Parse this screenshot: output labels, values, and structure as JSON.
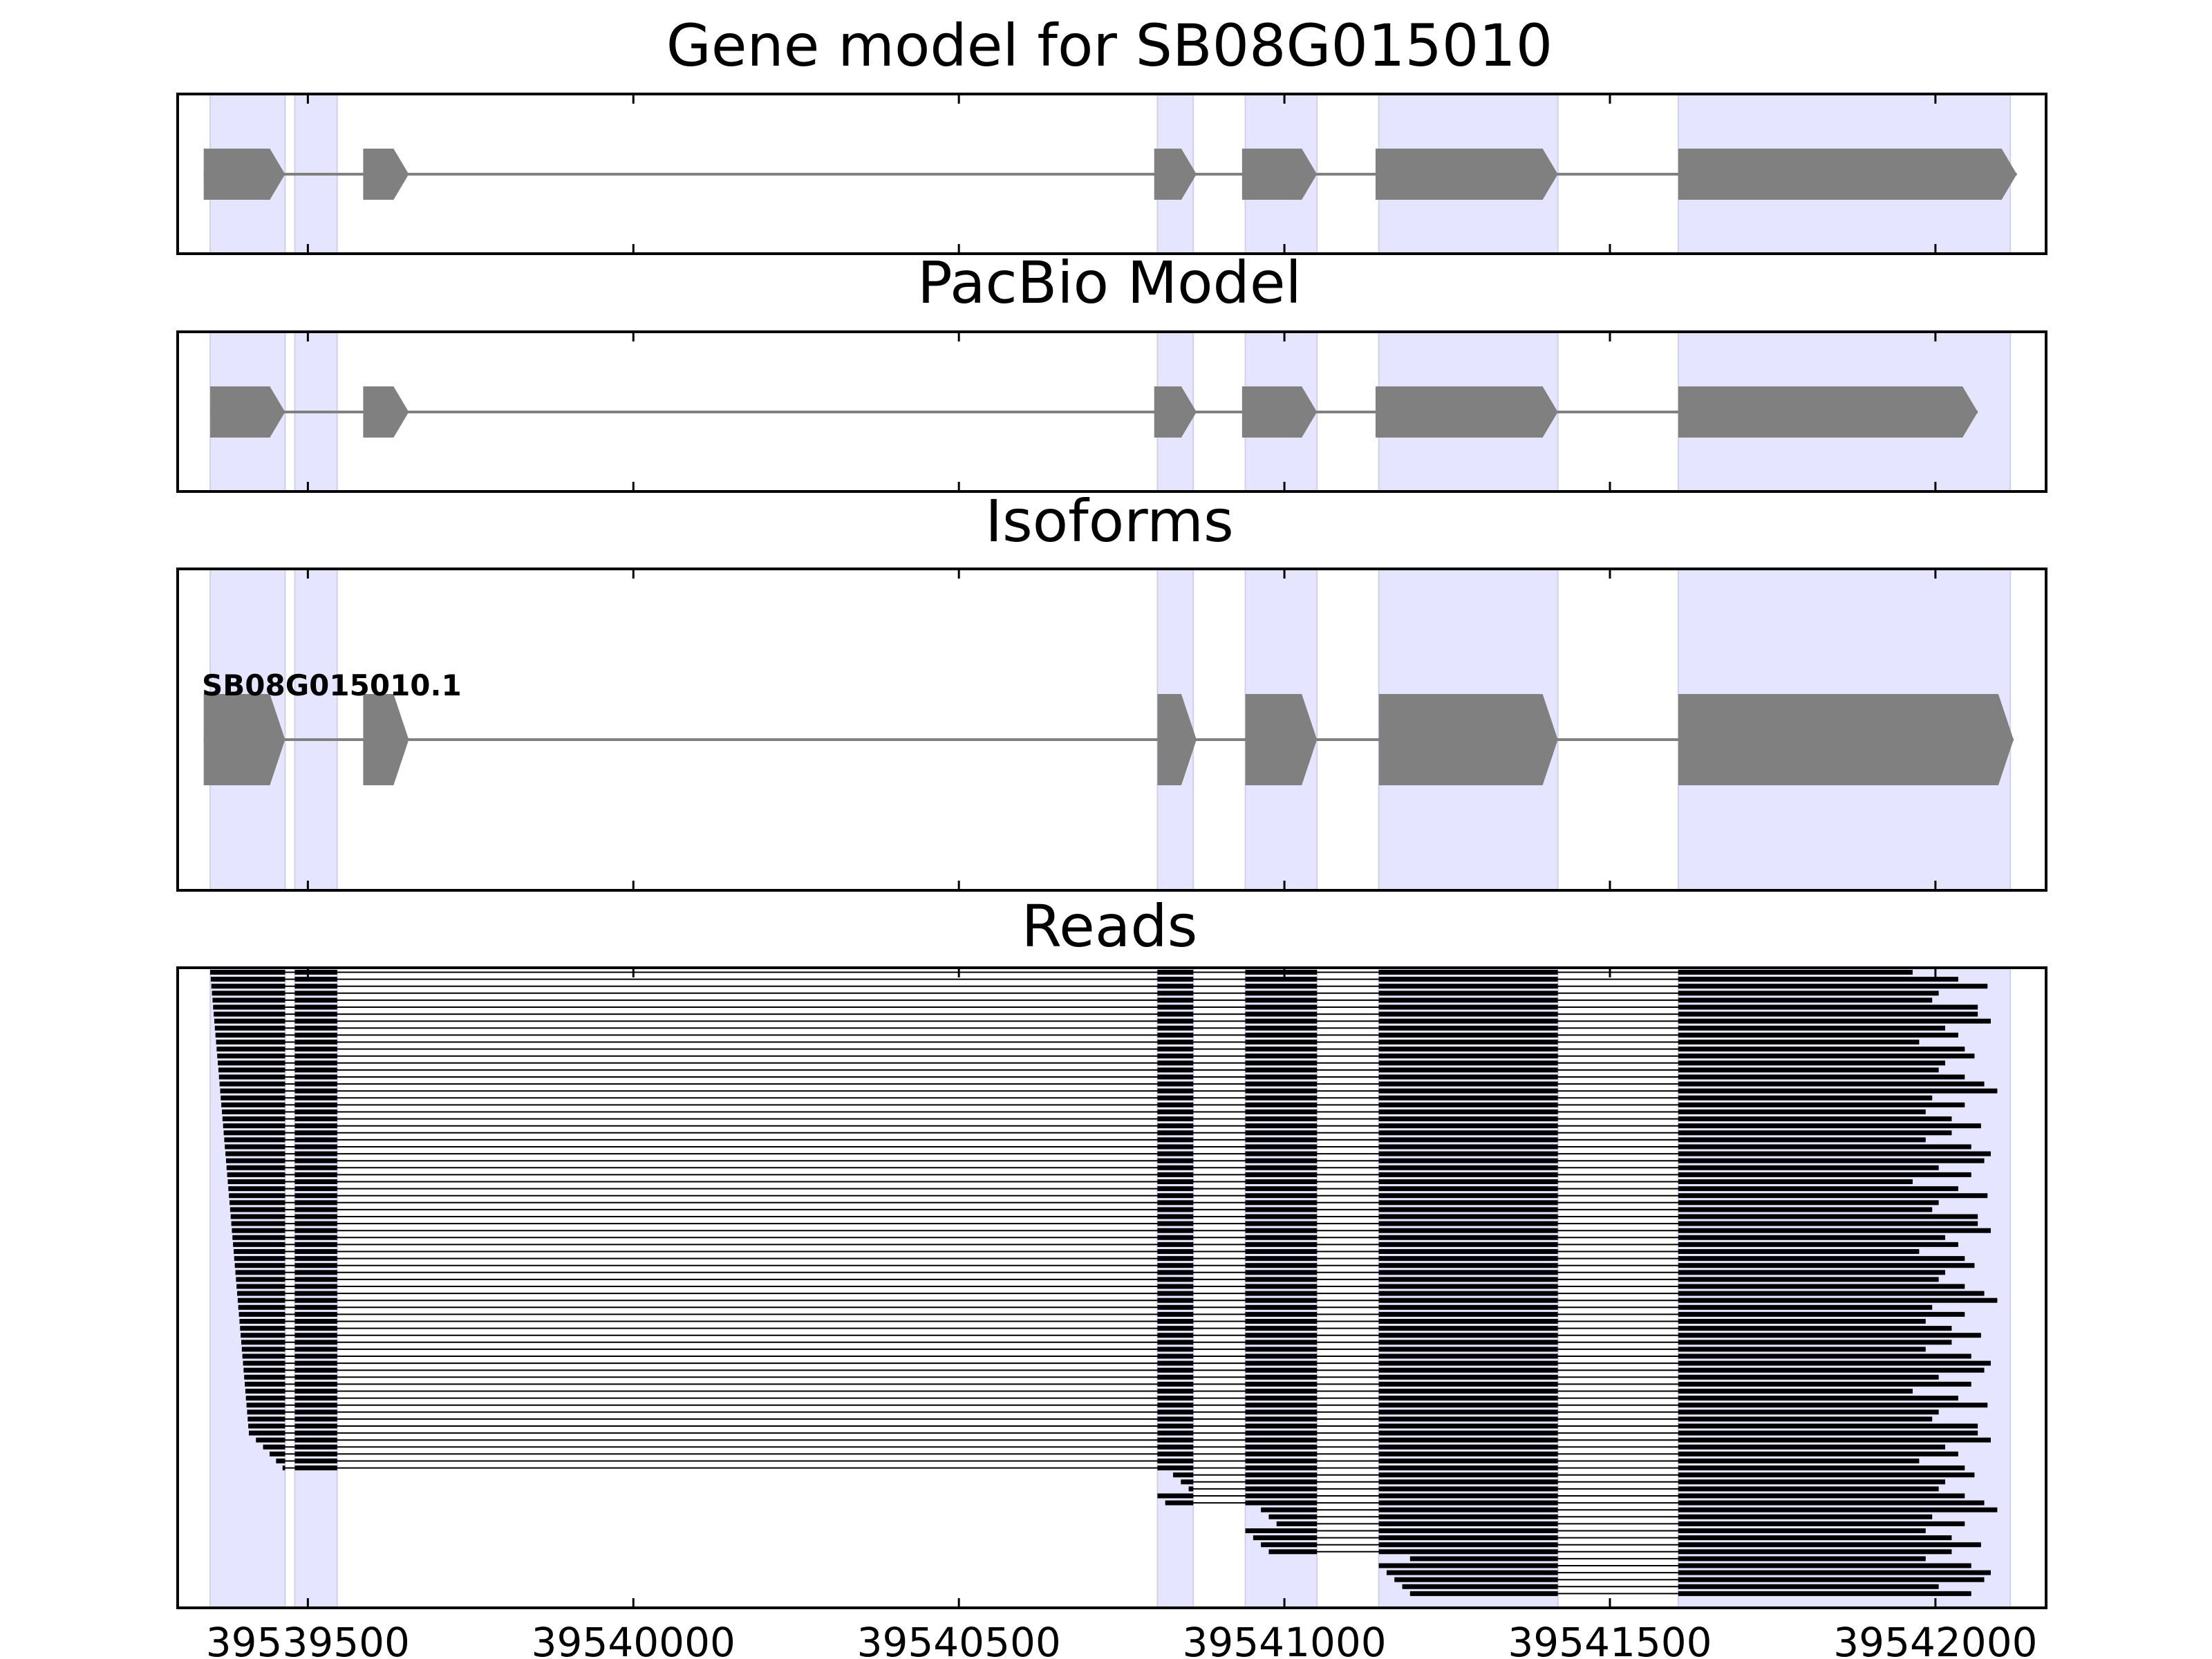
{
  "chart_data": {
    "type": "gene-model-track-plot",
    "xlim": [
      39539300,
      39542170
    ],
    "x_ticks": [
      39539500,
      39540000,
      39540500,
      39541000,
      39541500,
      39542000
    ],
    "x_tick_labels": [
      "39539500",
      "39540000",
      "39540500",
      "39541000",
      "39541500",
      "39542000"
    ],
    "exon_regions": [
      [
        39539350,
        39539465
      ],
      [
        39539480,
        39539545
      ],
      [
        39540805,
        39540860
      ],
      [
        39540940,
        39541050
      ],
      [
        39541145,
        39541420
      ],
      [
        39541605,
        39542115
      ]
    ],
    "colors": {
      "highlight": "#e5e5ff",
      "highlight_edge": "#d0d0ee",
      "feature": "#808080",
      "intron": "#808080",
      "read": "#000000",
      "frame": "#000000"
    },
    "panels": [
      {
        "id": "gene",
        "title": "Gene model for SB08G015010",
        "exons": [
          [
            39539340,
            39539465
          ],
          [
            39539585,
            39539655
          ],
          [
            39540800,
            39540865
          ],
          [
            39540935,
            39541050
          ],
          [
            39541140,
            39541420
          ],
          [
            39541605,
            39542125
          ]
        ]
      },
      {
        "id": "pacbio",
        "title": "PacBio Model",
        "exons": [
          [
            39539350,
            39539465
          ],
          [
            39539585,
            39539655
          ],
          [
            39540800,
            39540865
          ],
          [
            39540935,
            39541050
          ],
          [
            39541140,
            39541420
          ],
          [
            39541605,
            39542065
          ]
        ]
      },
      {
        "id": "isoforms",
        "title": "Isoforms",
        "isoforms": [
          {
            "name": "SB08G015010.1",
            "exons": [
              [
                39539340,
                39539465
              ],
              [
                39539585,
                39539655
              ],
              [
                39540805,
                39540865
              ],
              [
                39540940,
                39541050
              ],
              [
                39541145,
                39541420
              ],
              [
                39541605,
                39542120
              ]
            ]
          }
        ]
      },
      {
        "id": "reads",
        "title": "Reads",
        "read_count": 90,
        "note": "Each read: six exon blocks joined by thin intron lines; starts/ends vary per read."
      }
    ]
  }
}
